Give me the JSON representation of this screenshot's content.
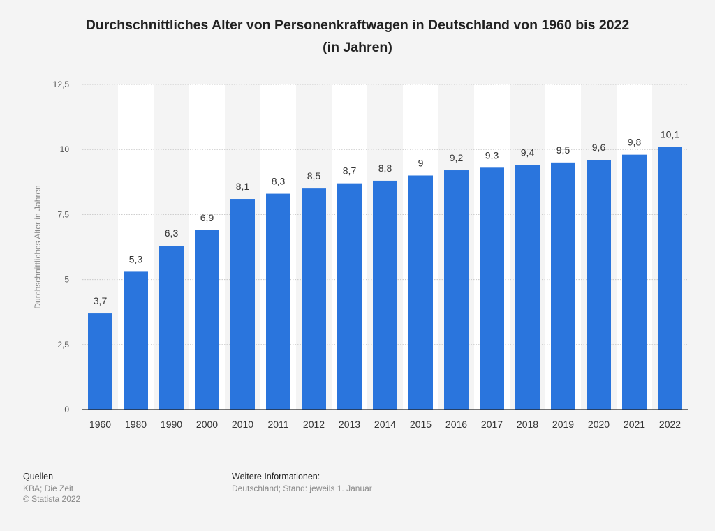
{
  "chart_data": {
    "type": "bar",
    "title_line1": "Durchschnittliches Alter von Personenkraftwagen in Deutschland von 1960 bis 2022",
    "title_line2": "(in Jahren)",
    "xlabel": "",
    "ylabel": "Durchschnittliches Alter in Jahren",
    "ylim": [
      0,
      12.5
    ],
    "yticks": [
      0,
      2.5,
      5,
      7.5,
      10,
      12.5
    ],
    "ytick_labels": [
      "0",
      "2,5",
      "5",
      "7,5",
      "10",
      "12,5"
    ],
    "categories": [
      "1960",
      "1980",
      "1990",
      "2000",
      "2010",
      "2011",
      "2012",
      "2013",
      "2014",
      "2015",
      "2016",
      "2017",
      "2018",
      "2019",
      "2020",
      "2021",
      "2022"
    ],
    "values": [
      3.7,
      5.3,
      6.3,
      6.9,
      8.1,
      8.3,
      8.5,
      8.7,
      8.8,
      9,
      9.2,
      9.3,
      9.4,
      9.5,
      9.6,
      9.8,
      10.1
    ],
    "value_labels": [
      "3,7",
      "5,3",
      "6,3",
      "6,9",
      "8,1",
      "8,3",
      "8,5",
      "8,7",
      "8,8",
      "9",
      "9,2",
      "9,3",
      "9,4",
      "9,5",
      "9,6",
      "9,8",
      "10,1"
    ],
    "bar_color": "#2a75dd",
    "grid": true,
    "legend": "none"
  },
  "footer": {
    "sources_heading": "Quellen",
    "sources_line1": "KBA; Die Zeit",
    "sources_line2": "© Statista 2022",
    "info_heading": "Weitere Informationen:",
    "info_text": "Deutschland; Stand: jeweils 1. Januar"
  }
}
